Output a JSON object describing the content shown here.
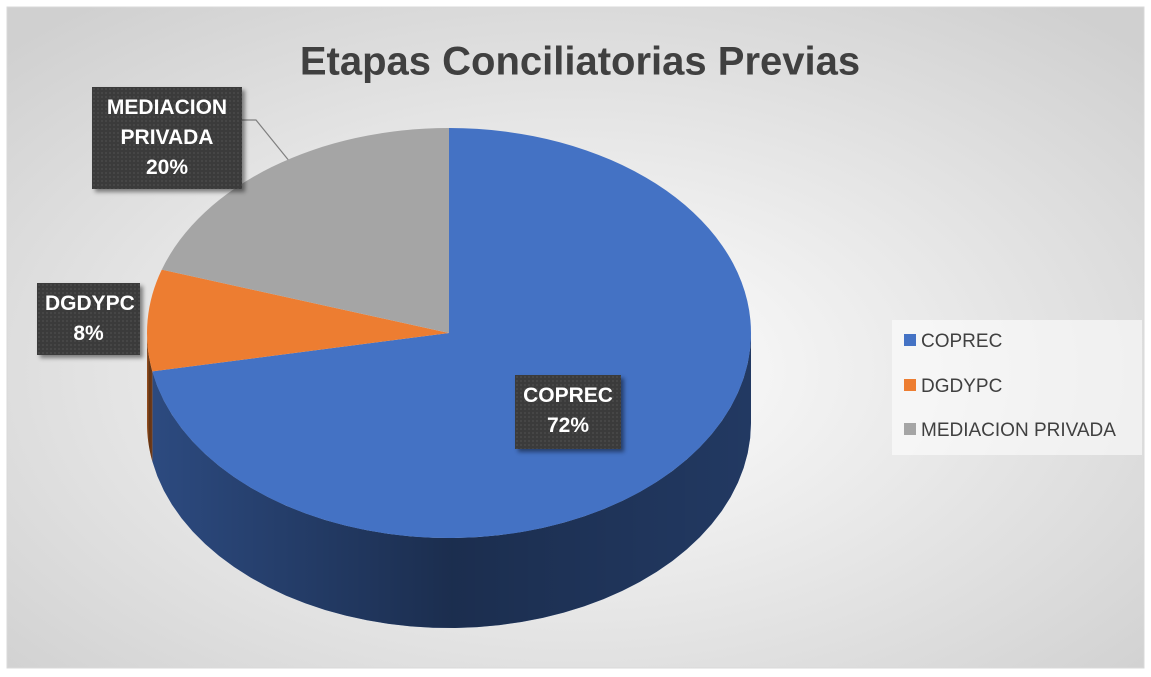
{
  "chart_data": {
    "type": "pie",
    "title": "Etapas Conciliatorias Previas",
    "categories": [
      "COPREC",
      "DGDYPC",
      "MEDIACION PRIVADA"
    ],
    "values": [
      72,
      8,
      20
    ],
    "value_labels": [
      "72%",
      "8%",
      "20%"
    ],
    "colors": [
      "#4472c4",
      "#ed7d31",
      "#a5a5a5"
    ],
    "legend": "right"
  }
}
